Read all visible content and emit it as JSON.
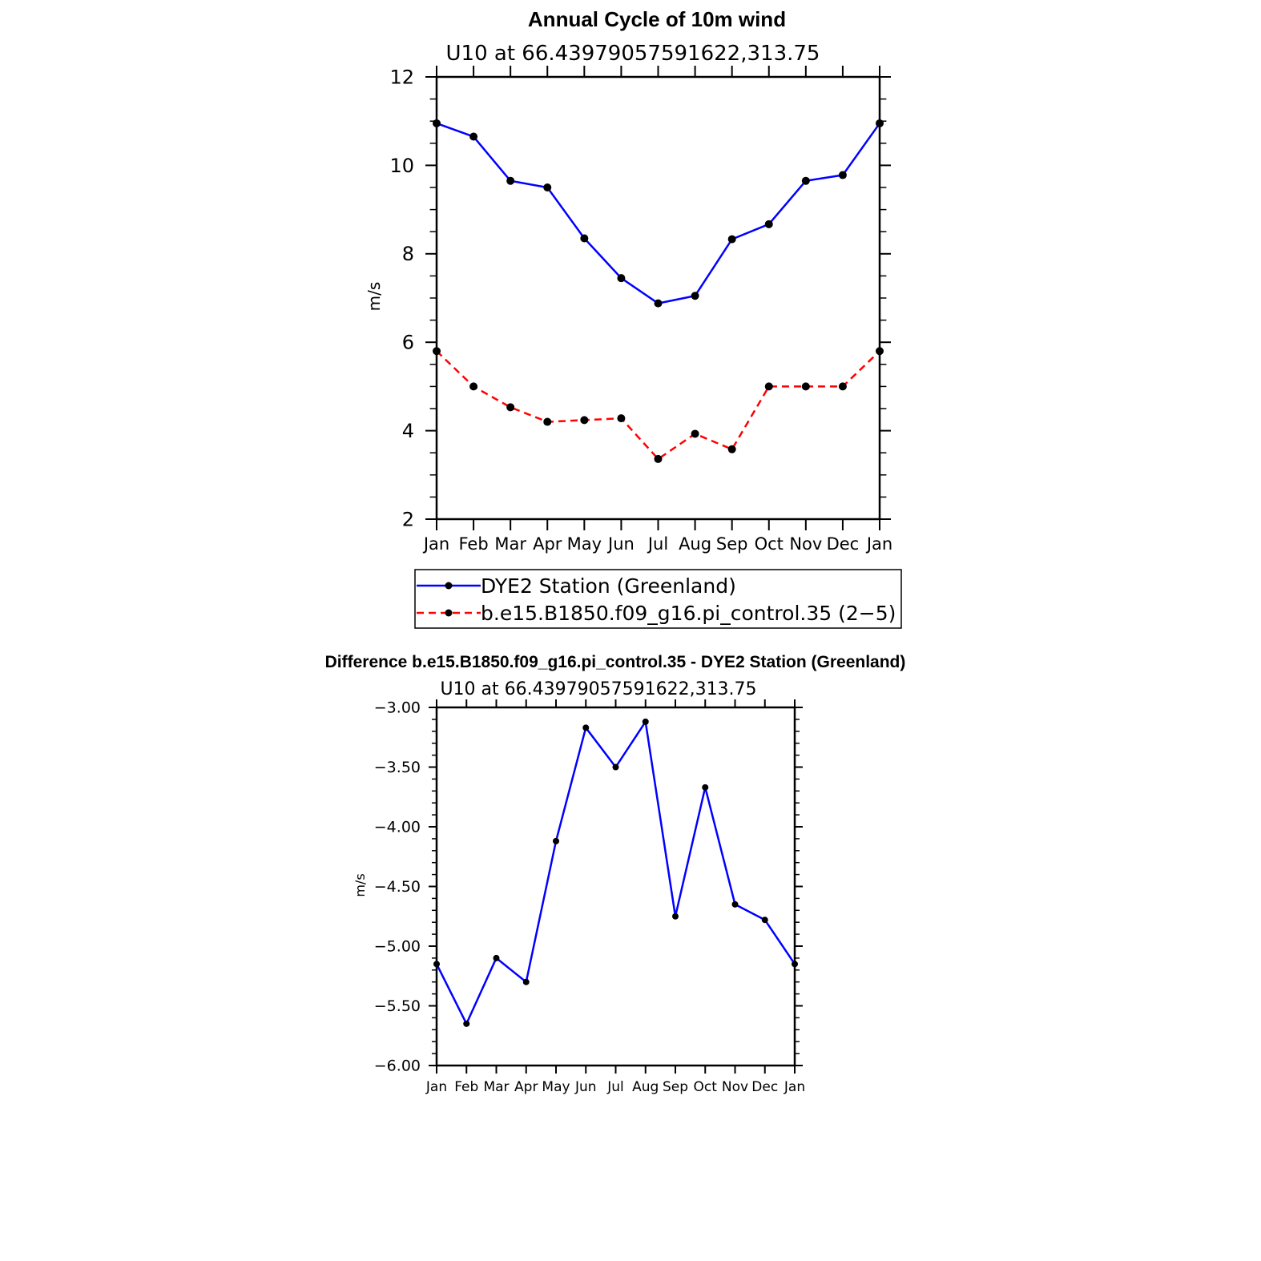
{
  "chart_data": [
    {
      "type": "line",
      "title": "Annual Cycle of 10m wind",
      "subtitle": "U10 at 66.43979057591622,313.75",
      "ylabel": "m/s",
      "xlabel": "",
      "categories": [
        "Jan",
        "Feb",
        "Mar",
        "Apr",
        "May",
        "Jun",
        "Jul",
        "Aug",
        "Sep",
        "Oct",
        "Nov",
        "Dec",
        "Jan"
      ],
      "ylim": [
        2,
        12
      ],
      "yticks": [
        2,
        4,
        6,
        8,
        10,
        12
      ],
      "ytick_labels": [
        "2",
        "4",
        "6",
        "8",
        "10",
        "12"
      ],
      "legend_position": "bottom",
      "series": [
        {
          "name": "DYE2 Station (Greenland)",
          "color": "#0000ff",
          "dash": "solid",
          "values": [
            10.95,
            10.65,
            9.65,
            9.5,
            8.35,
            7.45,
            6.88,
            7.05,
            8.33,
            8.67,
            9.65,
            9.78,
            10.95
          ]
        },
        {
          "name": "b.e15.B1850.f09_g16.pi_control.35 (2−5)",
          "color": "#ff0000",
          "dash": "dashed",
          "values": [
            5.8,
            5.0,
            4.53,
            4.2,
            4.24,
            4.28,
            3.36,
            3.93,
            3.58,
            5.0,
            5.0,
            5.0,
            5.8
          ]
        }
      ]
    },
    {
      "type": "line",
      "title": "Difference b.e15.B1850.f09_g16.pi_control.35 - DYE2 Station (Greenland)",
      "subtitle": "U10 at 66.43979057591622,313.75",
      "ylabel": "m/s",
      "xlabel": "",
      "categories": [
        "Jan",
        "Feb",
        "Mar",
        "Apr",
        "May",
        "Jun",
        "Jul",
        "Aug",
        "Sep",
        "Oct",
        "Nov",
        "Dec",
        "Jan"
      ],
      "ylim": [
        -6,
        -3
      ],
      "yticks": [
        -6,
        -5.5,
        -5,
        -4.5,
        -4,
        -3.5,
        -3
      ],
      "ytick_labels": [
        "−6.00",
        "−5.50",
        "−5.00",
        "−4.50",
        "−4.00",
        "−3.50",
        "−3.00"
      ],
      "series": [
        {
          "name": "Difference",
          "color": "#0000ff",
          "dash": "solid",
          "values": [
            -5.15,
            -5.65,
            -5.1,
            -5.3,
            -4.12,
            -3.17,
            -3.5,
            -3.12,
            -4.75,
            -3.67,
            -4.65,
            -4.78,
            -5.15
          ]
        }
      ]
    }
  ]
}
